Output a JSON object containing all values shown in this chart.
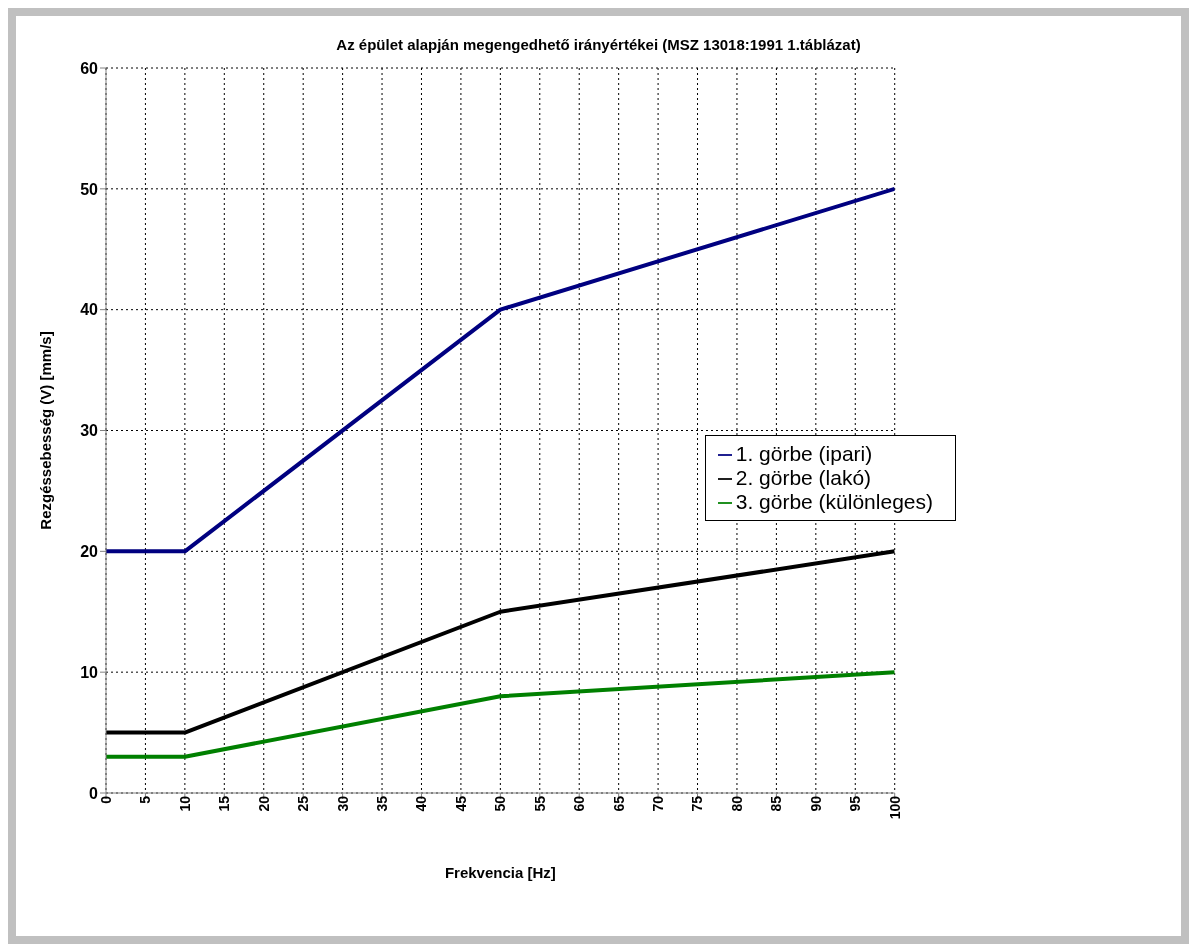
{
  "chart_data": {
    "type": "line",
    "title": "Az épület alapján megengedhető irányértékei (MSZ 13018:1991 1.táblázat)",
    "xlabel": "Frekvencia [Hz]",
    "ylabel": "Rezgéssebesség (V) [mm/s]",
    "x": [
      0,
      10,
      50,
      100
    ],
    "series": [
      {
        "name": "1. görbe (ipari)",
        "color": "#000080",
        "values": [
          20,
          20,
          40,
          50
        ]
      },
      {
        "name": "2. görbe (lakó)",
        "color": "#000000",
        "values": [
          5,
          5,
          15,
          20
        ]
      },
      {
        "name": "3. görbe (különleges)",
        "color": "#008000",
        "values": [
          3,
          3,
          8,
          10
        ]
      }
    ],
    "xlim": [
      0,
      100
    ],
    "xticks": [
      0,
      5,
      10,
      15,
      20,
      25,
      30,
      35,
      40,
      45,
      50,
      55,
      60,
      65,
      70,
      75,
      80,
      85,
      90,
      95,
      100
    ],
    "ylim": [
      0,
      60
    ],
    "yticks": [
      0,
      10,
      20,
      30,
      40,
      50,
      60
    ],
    "grid": true,
    "legend": "right",
    "marker": "none",
    "line_style": "solid"
  }
}
